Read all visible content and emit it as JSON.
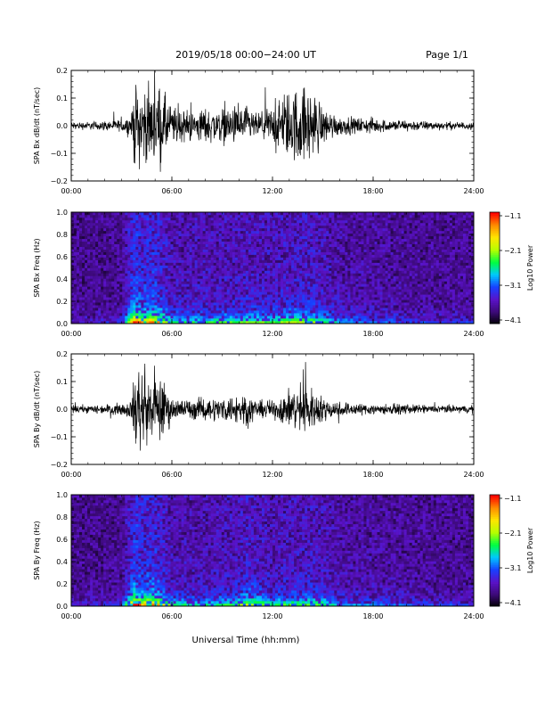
{
  "header": {
    "title": "2019/05/18  00:00−24:00 UT",
    "page": "Page 1/1"
  },
  "xlabel": "Universal Time (hh:mm)",
  "colors": {
    "trace": "#000000",
    "colormap": [
      "#000000",
      "#3c0a78",
      "#5a12c8",
      "#1840ff",
      "#00c8ff",
      "#00ff40",
      "#b4ff00",
      "#ffe600",
      "#ff8c00",
      "#ff0000"
    ]
  },
  "chart_data": [
    {
      "type": "line",
      "ylabel": "SPA Bx dB/dt (nT/sec)",
      "xlim": [
        0,
        24
      ],
      "ylim": [
        -0.2,
        0.2
      ],
      "xticks": [
        "00:00",
        "06:00",
        "12:00",
        "18:00",
        "24:00"
      ],
      "yticks": [
        "−0.2",
        "−0.1",
        "0.0",
        "0.1",
        "0.2"
      ],
      "envelope": {
        "x": [
          0,
          1,
          2,
          3,
          3.6,
          3.8,
          4.2,
          4.8,
          5.3,
          6,
          7,
          8,
          9,
          10,
          10.5,
          11,
          12,
          12.5,
          13,
          13.5,
          14,
          14.5,
          15,
          16,
          17,
          18,
          19,
          20,
          21,
          22,
          23,
          24
        ],
        "amplitude": [
          0.02,
          0.02,
          0.025,
          0.03,
          0.06,
          0.22,
          0.2,
          0.18,
          0.2,
          0.1,
          0.08,
          0.09,
          0.09,
          0.1,
          0.1,
          0.06,
          0.1,
          0.14,
          0.18,
          0.2,
          0.2,
          0.17,
          0.1,
          0.05,
          0.04,
          0.04,
          0.03,
          0.03,
          0.025,
          0.02,
          0.02,
          0.02
        ]
      }
    },
    {
      "type": "heatmap",
      "ylabel": "SPA Bx Freq (Hz)",
      "xlim": [
        0,
        24
      ],
      "ylim": [
        0,
        1.0
      ],
      "xticks": [
        "00:00",
        "06:00",
        "12:00",
        "18:00",
        "24:00"
      ],
      "yticks": [
        "0.0",
        "0.2",
        "0.4",
        "0.6",
        "0.8",
        "1.0"
      ],
      "colorbar": {
        "label": "Log10 Power",
        "range": [
          -4.1,
          -1.1
        ],
        "ticks": [
          "−1.1",
          "−2.1",
          "−3.1",
          "−4.1"
        ]
      },
      "activity": {
        "x": [
          0,
          3,
          3.8,
          4.2,
          4.8,
          5.3,
          6,
          8,
          10,
          10.5,
          12,
          14,
          15,
          16,
          20,
          24
        ],
        "level": [
          0.1,
          0.15,
          0.9,
          0.7,
          0.8,
          0.7,
          0.4,
          0.4,
          0.45,
          0.5,
          0.45,
          0.55,
          0.45,
          0.3,
          0.2,
          0.15
        ]
      }
    },
    {
      "type": "line",
      "ylabel": "SPA By dB/dt (nT/sec)",
      "xlim": [
        0,
        24
      ],
      "ylim": [
        -0.2,
        0.2
      ],
      "xticks": [
        "00:00",
        "06:00",
        "12:00",
        "18:00",
        "24:00"
      ],
      "yticks": [
        "−0.2",
        "−0.1",
        "0.0",
        "0.1",
        "0.2"
      ],
      "envelope": {
        "x": [
          0,
          1,
          2,
          3,
          3.6,
          3.8,
          4.2,
          4.8,
          5.3,
          6,
          7,
          8,
          9,
          10,
          10.5,
          11,
          12,
          12.5,
          13,
          13.5,
          14,
          14.5,
          15,
          16,
          17,
          18,
          19,
          20,
          21,
          22,
          23,
          24
        ],
        "amplitude": [
          0.02,
          0.02,
          0.025,
          0.03,
          0.05,
          0.22,
          0.2,
          0.15,
          0.18,
          0.06,
          0.05,
          0.06,
          0.06,
          0.08,
          0.1,
          0.04,
          0.05,
          0.07,
          0.1,
          0.12,
          0.13,
          0.1,
          0.06,
          0.04,
          0.03,
          0.03,
          0.025,
          0.025,
          0.02,
          0.02,
          0.02,
          0.02
        ]
      }
    },
    {
      "type": "heatmap",
      "ylabel": "SPA By Freq (Hz)",
      "xlim": [
        0,
        24
      ],
      "ylim": [
        0,
        1.0
      ],
      "xticks": [
        "00:00",
        "06:00",
        "12:00",
        "18:00",
        "24:00"
      ],
      "yticks": [
        "0.0",
        "0.2",
        "0.4",
        "0.6",
        "0.8",
        "1.0"
      ],
      "colorbar": {
        "label": "Log10 Power",
        "range": [
          -4.1,
          -1.1
        ],
        "ticks": [
          "−1.1",
          "−2.1",
          "−3.1",
          "−4.1"
        ]
      },
      "activity": {
        "x": [
          0,
          3,
          3.8,
          4.2,
          4.8,
          5.3,
          6,
          8,
          10,
          10.5,
          12,
          14,
          15,
          16,
          20,
          24
        ],
        "level": [
          0.1,
          0.15,
          0.9,
          0.7,
          0.8,
          0.7,
          0.4,
          0.35,
          0.45,
          0.6,
          0.4,
          0.5,
          0.45,
          0.3,
          0.2,
          0.15
        ]
      }
    }
  ]
}
